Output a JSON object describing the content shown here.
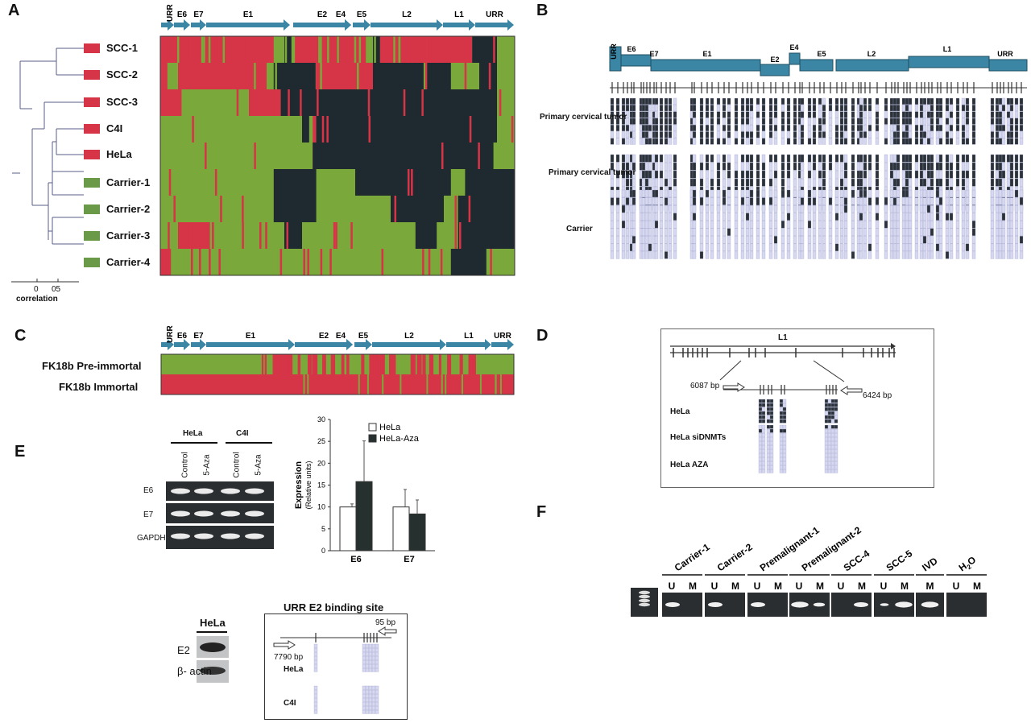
{
  "colors": {
    "arrow": "#3a86a4",
    "red": "#d63447",
    "green": "#7aa83a",
    "dark": "#1f2a30",
    "gel": "#2b2e30",
    "lightbox": "#c9cde8"
  },
  "panelA": {
    "letter": "A",
    "genes": [
      "URR",
      "E6",
      "E7",
      "E1",
      "E2",
      "E4",
      "E5",
      "L2",
      "L1",
      "URR"
    ],
    "samples": [
      {
        "name": "SCC-1",
        "group": "red"
      },
      {
        "name": "SCC-2",
        "group": "red"
      },
      {
        "name": "SCC-3",
        "group": "red"
      },
      {
        "name": "C4I",
        "group": "red"
      },
      {
        "name": "HeLa",
        "group": "red"
      },
      {
        "name": "Carrier-1",
        "group": "green"
      },
      {
        "name": "Carrier-2",
        "group": "green"
      },
      {
        "name": "Carrier-3",
        "group": "green"
      },
      {
        "name": "Carrier-4",
        "group": "green"
      }
    ],
    "axis_ticks": [
      "0",
      "05"
    ],
    "axis_label": "correlation"
  },
  "panelB": {
    "letter": "B",
    "genes": [
      "URR",
      "E6",
      "E7",
      "E1",
      "E2",
      "E4",
      "E5",
      "L2",
      "L1",
      "URR"
    ],
    "groups": [
      "Primary cervical tumor",
      "Primary cervical tumor",
      "Carrier"
    ]
  },
  "panelC": {
    "letter": "C",
    "genes": [
      "URR",
      "E6",
      "E7",
      "E1",
      "E2",
      "E4",
      "E5",
      "L2",
      "L1",
      "URR"
    ],
    "rows": [
      "FK18b Pre-immortal",
      "FK18b Immortal"
    ]
  },
  "panelD": {
    "letter": "D",
    "gene": "L1",
    "primer_left": "6087 bp",
    "primer_right": "6424 bp",
    "rows": [
      "HeLa",
      "HeLa siDNMTs",
      "HeLa AZA"
    ]
  },
  "panelE": {
    "letter": "E",
    "gel_groups": [
      "HeLa",
      "C4I"
    ],
    "gel_lanes": [
      "Control",
      "5-Aza",
      "Control",
      "5-Aza"
    ],
    "gel_rows": [
      "E6",
      "E7",
      "GAPDH"
    ],
    "western_title": "HeLa",
    "western_rows": [
      "E2",
      "β- actin"
    ],
    "urr_title": "URR E2 binding site",
    "urr_primer_left": "7790 bp",
    "urr_primer_right": "95 bp",
    "urr_rows": [
      "HeLa",
      "C4I"
    ]
  },
  "chart_data": {
    "type": "bar",
    "categories": [
      "E6",
      "E7"
    ],
    "series": [
      {
        "name": "HeLa",
        "values": [
          10.0,
          10.0
        ],
        "errors": [
          0.7,
          4.0
        ]
      },
      {
        "name": "HeLa-Aza",
        "values": [
          15.8,
          8.4
        ],
        "errors": [
          9.3,
          3.2
        ]
      }
    ],
    "ylabel": "Expression",
    "ylabel_sub": "(Relative  units)",
    "ylim": [
      0,
      30
    ],
    "yticks": [
      "0",
      "5",
      "10",
      "15",
      "20",
      "25",
      "30"
    ],
    "legend_position": "top-right"
  },
  "panelF": {
    "letter": "F",
    "samples": [
      "Carrier-1",
      "Carrier-2",
      "Premalignant-1",
      "Premalignant-2",
      "SCC-4",
      "SCC-5",
      "IVD",
      "H2O"
    ],
    "lane_labels": [
      "U",
      "M"
    ],
    "ivd_lane": "M"
  }
}
